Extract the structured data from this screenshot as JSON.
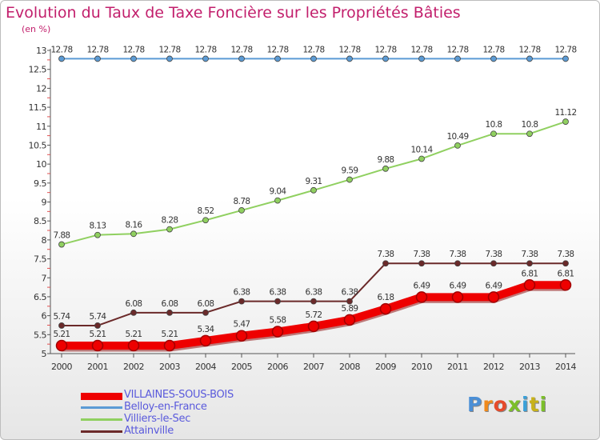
{
  "title": "Evolution du Taux de Taxe Foncière sur les Propriétés Bâties",
  "unit_label": "(en %)",
  "logo_text": "Proxiti",
  "chart_data": {
    "type": "line",
    "x": [
      "2000",
      "2001",
      "2002",
      "2003",
      "2004",
      "2005",
      "2006",
      "2007",
      "2008",
      "2009",
      "2010",
      "2011",
      "2012",
      "2013",
      "2014"
    ],
    "ylim": [
      5,
      13
    ],
    "yticks": [
      "5",
      "5.5",
      "6",
      "6.5",
      "7",
      "7.5",
      "8",
      "8.5",
      "9",
      "9.5",
      "10",
      "10.5",
      "11",
      "11.5",
      "12",
      "12.5",
      "13"
    ],
    "grid": false,
    "legend_position": "bottom-left",
    "series": [
      {
        "name": "Belloy-en-France",
        "color": "#5b9bd5",
        "values": [
          12.78,
          12.78,
          12.78,
          12.78,
          12.78,
          12.78,
          12.78,
          12.78,
          12.78,
          12.78,
          12.78,
          12.78,
          12.78,
          12.78,
          12.78
        ],
        "labels": [
          "12.78",
          "12.78",
          "12.78",
          "12.78",
          "12.78",
          "12.78",
          "12.78",
          "12.78",
          "12.78",
          "12.78",
          "12.78",
          "12.78",
          "12.78",
          "12.78",
          "12.78"
        ]
      },
      {
        "name": "Villiers-le-Sec",
        "color": "#90d060",
        "values": [
          7.88,
          8.13,
          8.16,
          8.28,
          8.52,
          8.78,
          9.04,
          9.31,
          9.59,
          9.88,
          10.14,
          10.49,
          10.8,
          10.8,
          11.12
        ],
        "labels": [
          "7.88",
          "8.13",
          "8.16",
          "8.28",
          "8.52",
          "8.78",
          "9.04",
          "9.31",
          "9.59",
          "9.88",
          "10.14",
          "10.49",
          "10.8",
          "10.8",
          "11.12"
        ]
      },
      {
        "name": "Attainville",
        "color": "#6b2a2a",
        "values": [
          5.74,
          5.74,
          6.08,
          6.08,
          6.08,
          6.38,
          6.38,
          6.38,
          6.38,
          7.38,
          7.38,
          7.38,
          7.38,
          7.38,
          7.38
        ],
        "labels": [
          "5.74",
          "5.74",
          "6.08",
          "6.08",
          "6.08",
          "6.38",
          "6.38",
          "6.38",
          "6.38",
          "7.38",
          "7.38",
          "7.38",
          "7.38",
          "7.38",
          "7.38"
        ]
      },
      {
        "name": "VILLAINES-SOUS-BOIS",
        "color": "#ee0000",
        "values": [
          5.21,
          5.21,
          5.21,
          5.21,
          5.34,
          5.47,
          5.58,
          5.72,
          5.89,
          6.18,
          6.49,
          6.49,
          6.49,
          6.81,
          6.81
        ],
        "labels": [
          "5.21",
          "5.21",
          "5.21",
          "5.21",
          "5.34",
          "5.47",
          "5.58",
          "5.72",
          "5.89",
          "6.18",
          "6.49",
          "6.49",
          "6.49",
          "6.81",
          "6.81"
        ]
      }
    ],
    "legend": [
      {
        "label": "VILLAINES-SOUS-BOIS",
        "color": "#ee0000",
        "thick": true
      },
      {
        "label": "Belloy-en-France",
        "color": "#5b9bd5",
        "thick": false
      },
      {
        "label": "Villiers-le-Sec",
        "color": "#90d060",
        "thick": false
      },
      {
        "label": "Attainville",
        "color": "#6b2a2a",
        "thick": false
      }
    ]
  }
}
